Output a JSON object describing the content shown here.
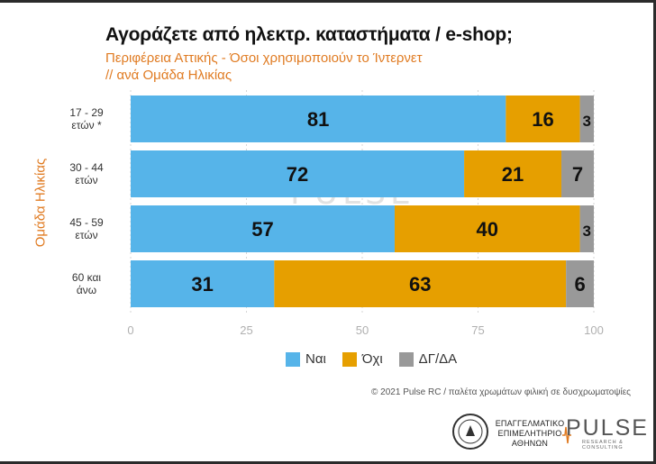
{
  "title": "Αγοράζετε από ηλεκτρ. καταστήματα / e-shop;",
  "subtitle_line1": "Περιφέρεια Αττικής - Όσοι χρησιμοποιούν το Ίντερνετ",
  "subtitle_line2": " // ανά Ομάδα Ηλικίας",
  "footer": "© 2021 Pulse RC  /  παλέτα χρωμάτων φιλική σε δυσχρωματοψίες",
  "watermark": {
    "big": "PULSE",
    "small": "RESEARCH & CONSULTING"
  },
  "logos": {
    "chamber_line1": "ΕΠΑΓΓΕΛΜΑΤΙΚΟ",
    "chamber_line2": "ΕΠΙΜΕΛΗΤΗΡΙΟ",
    "chamber_line3": "ΑΘΗΝΩΝ",
    "pulse": "PULSE",
    "pulse_tagline": "RESEARCH & CONSULTING",
    "seal_text": "ΠΡΟΣΦΕΡΩ"
  },
  "colors": {
    "yes": "#56b4e9",
    "no": "#e69f00",
    "dk": "#999999",
    "accent": "#e07b22"
  },
  "chart_data": {
    "type": "bar",
    "orientation": "horizontal",
    "stacked": true,
    "title": "Αγοράζετε από ηλεκτρ. καταστήματα / e-shop;",
    "subtitle": "Περιφέρεια Αττικής - Όσοι χρησιμοποιούν το Ίντερνετ // ανά Ομάδα Ηλικίας",
    "ylabel": "Ομάδα Ηλικίας",
    "xlabel": "",
    "categories": [
      [
        "17 - 29",
        "ετών *"
      ],
      [
        "30 - 44",
        "ετών"
      ],
      [
        "45 - 59",
        "ετών"
      ],
      [
        "60 και",
        "άνω"
      ]
    ],
    "series": [
      {
        "name": "Ναι",
        "color": "#56b4e9",
        "values": [
          81,
          72,
          57,
          31
        ]
      },
      {
        "name": "Όχι",
        "color": "#e69f00",
        "values": [
          16,
          21,
          40,
          63
        ]
      },
      {
        "name": "ΔΓ/ΔΑ",
        "color": "#999999",
        "values": [
          3,
          7,
          3,
          6
        ]
      }
    ],
    "xlim": [
      0,
      100
    ],
    "xticks": [
      0,
      25,
      50,
      75,
      100
    ],
    "grid": true,
    "legend": "bottom"
  }
}
